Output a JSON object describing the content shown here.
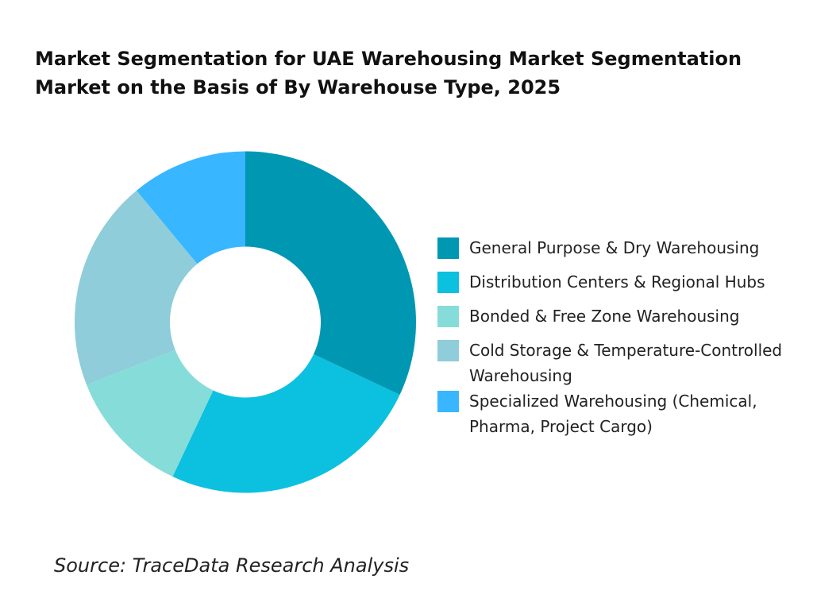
{
  "chart_data": {
    "type": "donut",
    "title": "Market Segmentation for UAE Warehousing Market Segmentation Market on the Basis of By Warehouse Type, 2025",
    "categories": [
      "General Purpose & Dry Warehousing",
      "Distribution Centers & Regional Hubs",
      "Bonded & Free Zone Warehousing",
      "Cold Storage & Temperature-Controlled Warehousing",
      "Specialized Warehousing (Chemical, Pharma, Project Cargo)"
    ],
    "values": [
      32,
      25,
      12,
      20,
      11
    ],
    "colors": [
      "#0097b2",
      "#0cc0df",
      "#86dcd8",
      "#8ecdd9",
      "#38b6ff"
    ],
    "source": "Source: TraceData Research Analysis"
  }
}
